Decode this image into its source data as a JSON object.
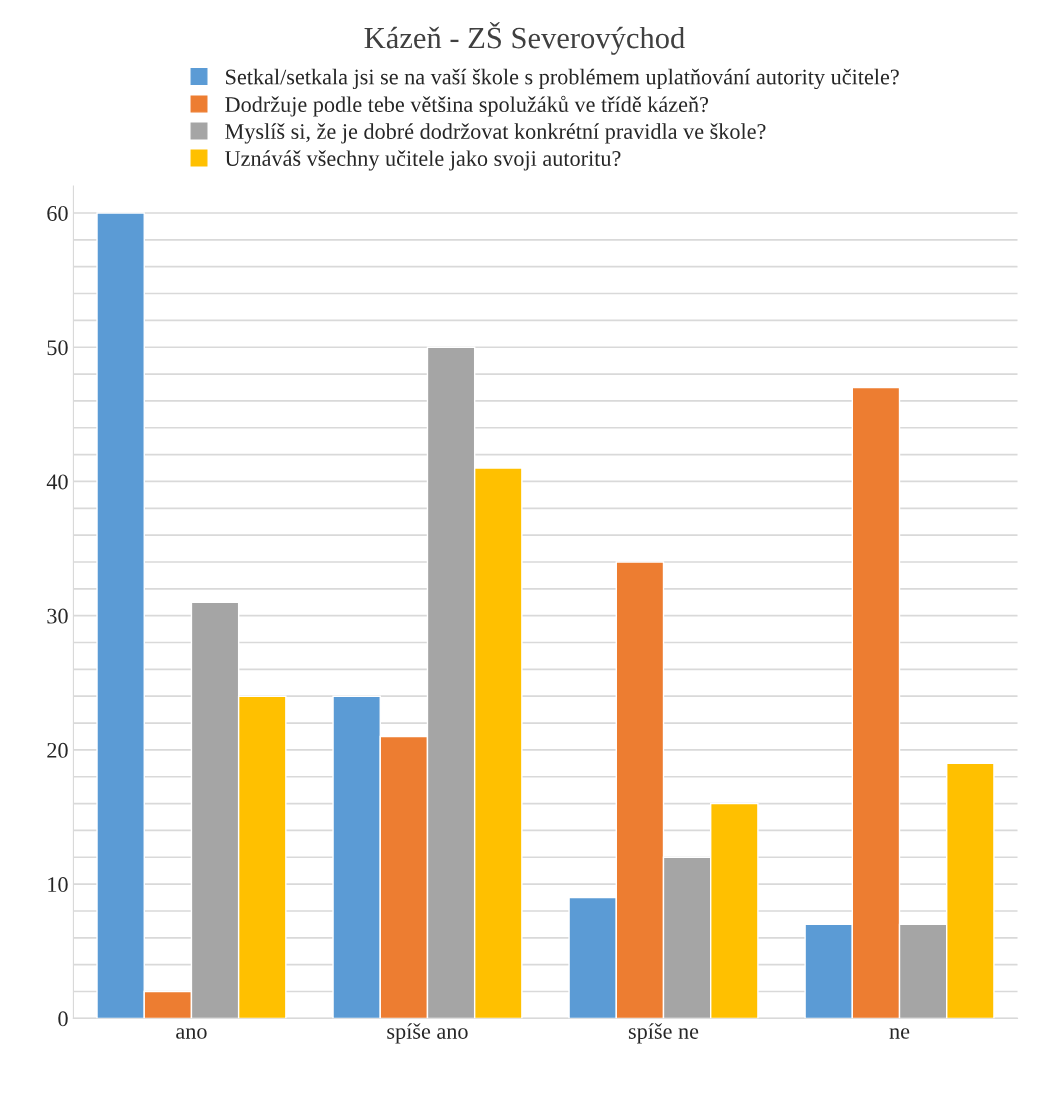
{
  "chart_data": {
    "type": "bar",
    "title": "Kázeň - ZŠ Severovýchod",
    "categories": [
      "ano",
      "spíše ano",
      "spíše ne",
      "ne"
    ],
    "series": [
      {
        "name": "Setkal/setkala jsi se na vaší škole s problémem uplatňování autority učitele?",
        "color": "#5b9bd5",
        "values": [
          60,
          24,
          9,
          7
        ]
      },
      {
        "name": "Dodržuje podle tebe většina spolužáků ve třídě kázeň?",
        "color": "#ed7d31",
        "values": [
          2,
          21,
          34,
          47
        ]
      },
      {
        "name": "Myslíš si, že je dobré dodržovat konkrétní pravidla ve škole?",
        "color": "#a5a5a5",
        "values": [
          31,
          50,
          12,
          7
        ]
      },
      {
        "name": "Uznáváš všechny učitele jako svoji autoritu?",
        "color": "#ffc000",
        "values": [
          24,
          41,
          16,
          19
        ]
      }
    ],
    "ylim": [
      0,
      62
    ],
    "yticks": [
      0,
      {
        "value": 2,
        "label": null
      },
      {
        "value": 4,
        "label": null
      },
      {
        "value": 6,
        "label": null
      },
      {
        "value": 8,
        "label": null
      },
      10,
      {
        "value": 12,
        "label": null
      },
      {
        "value": 14,
        "label": null
      },
      {
        "value": 16,
        "label": null
      },
      {
        "value": 18,
        "label": null
      },
      20,
      {
        "value": 22,
        "label": null
      },
      {
        "value": 24,
        "label": null
      },
      {
        "value": 26,
        "label": null
      },
      {
        "value": 28,
        "label": null
      },
      30,
      {
        "value": 32,
        "label": null
      },
      {
        "value": 34,
        "label": null
      },
      {
        "value": 36,
        "label": null
      },
      {
        "value": 38,
        "label": null
      },
      40,
      {
        "value": 42,
        "label": null
      },
      {
        "value": 44,
        "label": null
      },
      {
        "value": 46,
        "label": null
      },
      {
        "value": 48,
        "label": null
      },
      50,
      {
        "value": 52,
        "label": null
      },
      {
        "value": 54,
        "label": null
      },
      {
        "value": 56,
        "label": null
      },
      {
        "value": 58,
        "label": null
      },
      60
    ],
    "grid": "y",
    "legend": "top"
  }
}
